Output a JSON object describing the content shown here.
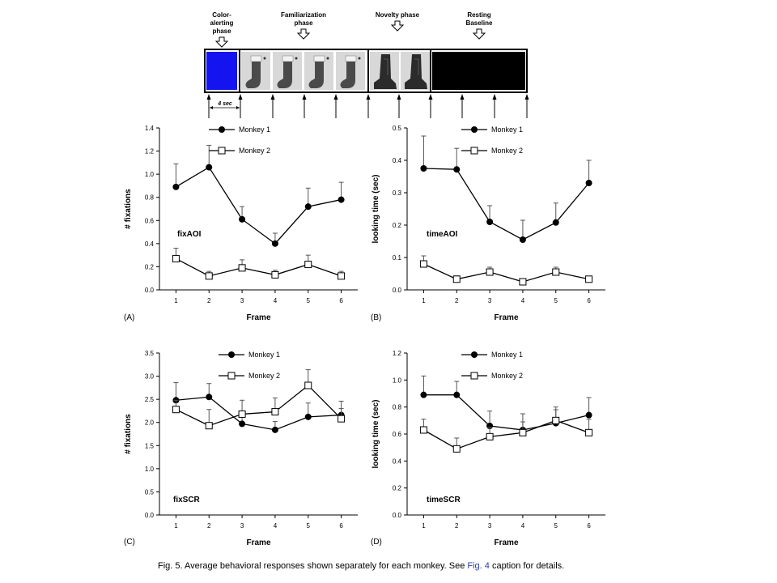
{
  "timeline": {
    "phases": [
      {
        "lines": [
          "Color-",
          "alerting",
          "phase"
        ]
      },
      {
        "lines": [
          "Familiarization",
          "phase"
        ]
      },
      {
        "lines": [
          "Novelty phase"
        ]
      },
      {
        "lines": [
          "Resting",
          "Baseline"
        ]
      }
    ],
    "duration_label": "4 sec",
    "color_frame": "#1414f0",
    "baseline_frame": "#000000",
    "stimuli": [
      "stocking-icon",
      "stocking-icon",
      "stocking-icon",
      "stocking-icon",
      "boot-icon",
      "boot-icon"
    ]
  },
  "caption": {
    "prefix": "Fig. 5.  Average behavioral responses shown separately for each monkey. See ",
    "link": "Fig. 4",
    "suffix": " caption for details."
  },
  "chart_data": [
    {
      "type": "line",
      "panel": "(A)",
      "tag": "fixAOI",
      "xlabel": "Frame",
      "ylabel": "# fixations",
      "x": [
        1,
        2,
        3,
        4,
        5,
        6
      ],
      "xlim": [
        0.5,
        6.5
      ],
      "ylim": [
        0,
        1.4
      ],
      "yticks": [
        "0.0",
        "0.2",
        "0.4",
        "0.6",
        "0.8",
        "1.0",
        "1.2",
        "1.4"
      ],
      "legend": "top-center",
      "series": [
        {
          "name": "Monkey 1",
          "marker": "filled-circle",
          "values": [
            0.89,
            1.06,
            0.61,
            0.4,
            0.72,
            0.78
          ],
          "error": [
            0.2,
            0.19,
            0.11,
            0.09,
            0.16,
            0.15
          ]
        },
        {
          "name": "Monkey 2",
          "marker": "open-square",
          "values": [
            0.27,
            0.12,
            0.19,
            0.13,
            0.22,
            0.12
          ],
          "error": [
            0.09,
            0.04,
            0.07,
            0.04,
            0.08,
            0.04
          ]
        }
      ]
    },
    {
      "type": "line",
      "panel": "(B)",
      "tag": "timeAOI",
      "xlabel": "Frame",
      "ylabel": "looking time (sec)",
      "x": [
        1,
        2,
        3,
        4,
        5,
        6
      ],
      "xlim": [
        0.5,
        6.5
      ],
      "ylim": [
        0,
        0.5
      ],
      "yticks": [
        "0.0",
        "0.1",
        "0.2",
        "0.3",
        "0.4",
        "0.5"
      ],
      "legend": "top-center",
      "series": [
        {
          "name": "Monkey 1",
          "marker": "filled-circle",
          "values": [
            0.375,
            0.372,
            0.21,
            0.155,
            0.208,
            0.33
          ],
          "error": [
            0.1,
            0.065,
            0.05,
            0.06,
            0.06,
            0.07
          ]
        },
        {
          "name": "Monkey 2",
          "marker": "open-square",
          "values": [
            0.08,
            0.033,
            0.055,
            0.025,
            0.055,
            0.033
          ],
          "error": [
            0.025,
            0.01,
            0.015,
            0.008,
            0.015,
            0.008
          ]
        }
      ]
    },
    {
      "type": "line",
      "panel": "(C)",
      "tag": "fixSCR",
      "xlabel": "Frame",
      "ylabel": "# fixations",
      "x": [
        1,
        2,
        3,
        4,
        5,
        6
      ],
      "xlim": [
        0.5,
        6.5
      ],
      "ylim": [
        0,
        3.5
      ],
      "yticks": [
        "0.0",
        "0.5",
        "1.0",
        "1.5",
        "2.0",
        "2.5",
        "3.0",
        "3.5"
      ],
      "legend": "top-center",
      "series": [
        {
          "name": "Monkey 1",
          "marker": "filled-circle",
          "values": [
            2.48,
            2.55,
            1.97,
            1.84,
            2.12,
            2.16
          ],
          "error": [
            0.38,
            0.29,
            0.22,
            0.18,
            0.3,
            0.3
          ]
        },
        {
          "name": "Monkey 2",
          "marker": "open-square",
          "values": [
            2.28,
            1.93,
            2.18,
            2.23,
            2.8,
            2.08
          ],
          "error": [
            0.2,
            0.35,
            0.3,
            0.3,
            0.34,
            0.22
          ]
        }
      ]
    },
    {
      "type": "line",
      "panel": "(D)",
      "tag": "timeSCR",
      "xlabel": "Frame",
      "ylabel": "looking time (sec)",
      "x": [
        1,
        2,
        3,
        4,
        5,
        6
      ],
      "xlim": [
        0.5,
        6.5
      ],
      "ylim": [
        0,
        1.2
      ],
      "yticks": [
        "0.0",
        "0.2",
        "0.4",
        "0.6",
        "0.8",
        "1.0",
        "1.2"
      ],
      "legend": "top-center",
      "series": [
        {
          "name": "Monkey 1",
          "marker": "filled-circle",
          "values": [
            0.89,
            0.89,
            0.66,
            0.63,
            0.68,
            0.74
          ],
          "error": [
            0.14,
            0.1,
            0.11,
            0.12,
            0.1,
            0.13
          ]
        },
        {
          "name": "Monkey 2",
          "marker": "open-square",
          "values": [
            0.63,
            0.49,
            0.58,
            0.61,
            0.7,
            0.61
          ],
          "error": [
            0.08,
            0.08,
            0.07,
            0.08,
            0.1,
            0.1
          ]
        }
      ]
    }
  ]
}
